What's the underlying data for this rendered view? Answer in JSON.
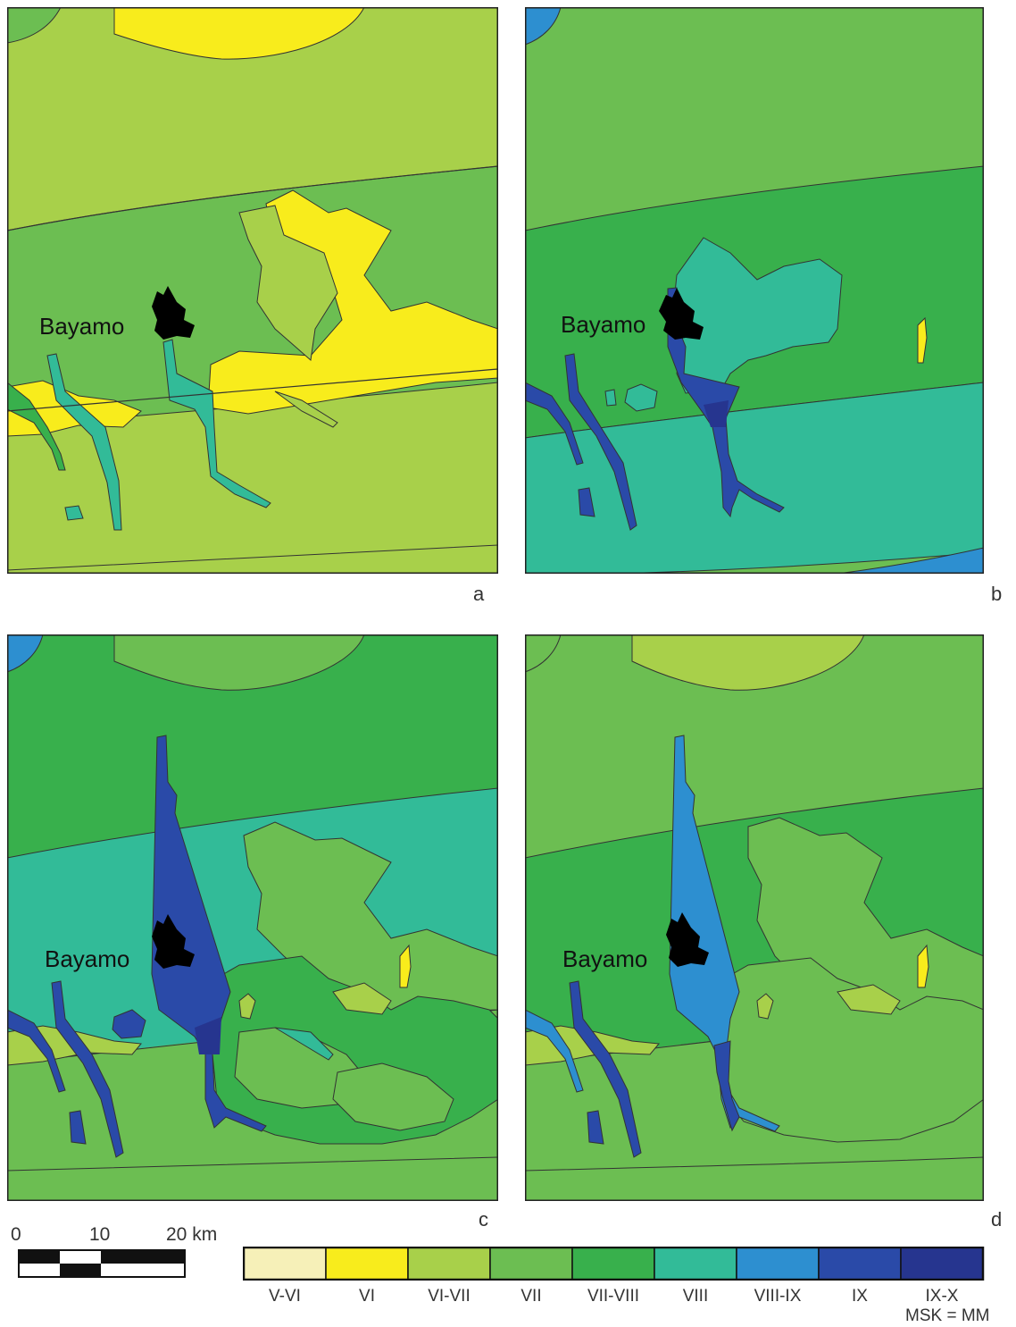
{
  "city": "Bayamo",
  "panels": [
    {
      "id": "a",
      "label": "a"
    },
    {
      "id": "b",
      "label": "b"
    },
    {
      "id": "c",
      "label": "c"
    },
    {
      "id": "d",
      "label": "d"
    }
  ],
  "scale_bar": {
    "ticks": [
      "0",
      "10",
      "20 km"
    ]
  },
  "legend": {
    "classes": [
      {
        "label": "V-VI",
        "color": "#f6f0b8"
      },
      {
        "label": "VI",
        "color": "#f8ec1c"
      },
      {
        "label": "VI-VII",
        "color": "#a8d04a"
      },
      {
        "label": "VII",
        "color": "#6cbe52"
      },
      {
        "label": "VII-VIII",
        "color": "#38b04c"
      },
      {
        "label": "VIII",
        "color": "#32bb98"
      },
      {
        "label": "VIII-IX",
        "color": "#2d8fd0"
      },
      {
        "label": "IX",
        "color": "#2a4aa8"
      },
      {
        "label": "IX-X",
        "color": "#26358f"
      }
    ],
    "note": "MSK = MM"
  }
}
